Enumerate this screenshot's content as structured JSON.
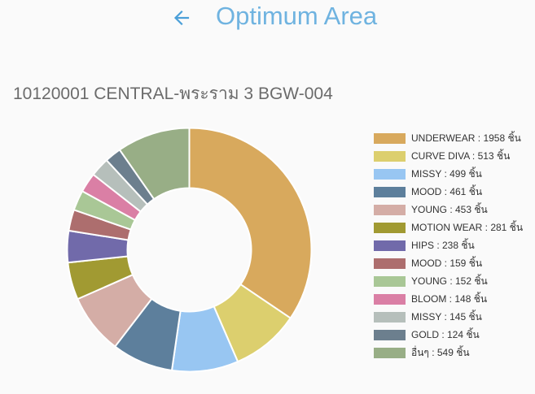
{
  "header": {
    "title": "Optimum Area",
    "back_icon": "arrow-left-icon",
    "accent_color": "#4a9fd8"
  },
  "store_title": "10120001 CENTRAL-พระราม 3 BGW-004",
  "chart_data": {
    "type": "pie",
    "variant": "donut",
    "title": "",
    "legend_position": "right",
    "unit": "ชิ้น",
    "slices": [
      {
        "name": "UNDERWEAR",
        "value": 1958,
        "color": "#d8a95d",
        "label": "UNDERWEAR : 1958 ชิ้น"
      },
      {
        "name": "CURVE DIVA",
        "value": 513,
        "color": "#dccf6e",
        "label": "CURVE DIVA : 513 ชิ้น"
      },
      {
        "name": "MISSY",
        "value": 499,
        "color": "#98c6f2",
        "label": "MISSY : 499 ชิ้น"
      },
      {
        "name": "MOOD",
        "value": 461,
        "color": "#5d7f9c",
        "label": "MOOD : 461 ชิ้น"
      },
      {
        "name": "YOUNG",
        "value": 453,
        "color": "#d4ada6",
        "label": "YOUNG : 453 ชิ้น"
      },
      {
        "name": "MOTION WEAR",
        "value": 281,
        "color": "#a19a32",
        "label": "MOTION WEAR : 281 ชิ้น"
      },
      {
        "name": "HIPS",
        "value": 238,
        "color": "#716aaa",
        "label": "HIPS : 238 ชิ้น"
      },
      {
        "name": "MOOD",
        "value": 159,
        "color": "#ad6e6e",
        "label": "MOOD : 159 ชิ้น"
      },
      {
        "name": "YOUNG",
        "value": 152,
        "color": "#a9c796",
        "label": "YOUNG : 152 ชิ้น"
      },
      {
        "name": "BLOOM",
        "value": 148,
        "color": "#da7fa5",
        "label": "BLOOM : 148 ชิ้น"
      },
      {
        "name": "MISSY",
        "value": 145,
        "color": "#b6bfbb",
        "label": "MISSY : 145 ชิ้น"
      },
      {
        "name": "GOLD",
        "value": 124,
        "color": "#6c7f8e",
        "label": "GOLD : 124 ชิ้น"
      },
      {
        "name": "อื่นๆ",
        "value": 549,
        "color": "#98ae86",
        "label": "อื่นๆ : 549 ชิ้น"
      }
    ]
  }
}
